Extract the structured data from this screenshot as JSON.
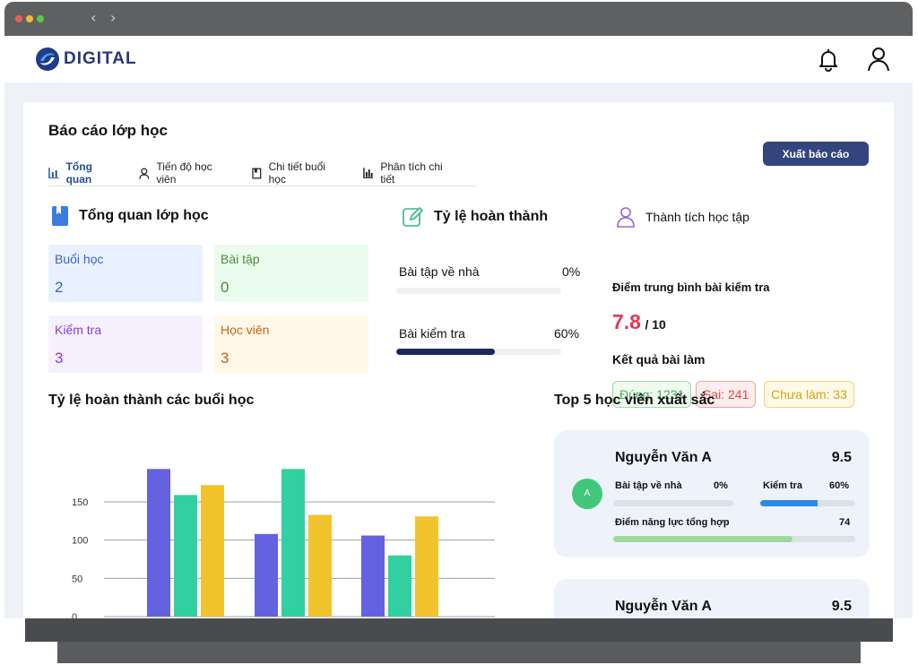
{
  "brand": {
    "name": "DIGITAL"
  },
  "page": {
    "title": "Báo cáo lớp học",
    "export_label": "Xuất báo cáo"
  },
  "tabs": [
    {
      "label": "Tổng quan",
      "icon": "bar-chart-icon",
      "active": true
    },
    {
      "label": "Tiến độ học viên",
      "icon": "user-icon",
      "active": false
    },
    {
      "label": "Chi tiết buổi học",
      "icon": "bookmark-icon",
      "active": false
    },
    {
      "label": "Phân tích chi tiết",
      "icon": "chart-icon",
      "active": false
    }
  ],
  "overview": {
    "title": "Tổng quan lớp học",
    "stats": [
      {
        "label": "Buổi học",
        "value": "2",
        "color": "#3b63c4",
        "bg": "#eaf1fe"
      },
      {
        "label": "Bài tập",
        "value": "0",
        "color": "#4b8b3f",
        "bg": "#ebfbee"
      },
      {
        "label": "Kiểm tra",
        "value": "3",
        "color": "#8a3ec8",
        "bg": "#f7f1fe"
      },
      {
        "label": "Học viên",
        "value": "3",
        "color": "#c0671a",
        "bg": "#fff8e8"
      }
    ]
  },
  "completion": {
    "title": "Tỷ lệ hoàn thành",
    "items": [
      {
        "label": "Bài tập về nhà",
        "percent_text": "0%",
        "percent": 0
      },
      {
        "label": "Bài kiểm tra",
        "percent_text": "60%",
        "percent": 60
      }
    ]
  },
  "achievement": {
    "title": "Thành tích học tập",
    "avg_label": "Điểm trung bình bài kiểm tra",
    "avg_score": "7.8",
    "avg_max": "/ 10",
    "result_label": "Kết quả bài làm",
    "chips": [
      {
        "text": "Đúng: 1231",
        "color": "#4ea85a",
        "bg": "#effbef"
      },
      {
        "text": "Sai: 241",
        "color": "#e0474c",
        "bg": "#fdeeee"
      },
      {
        "text": "Chưa làm: 33",
        "color": "#d9a012",
        "bg": "#fffae8"
      }
    ]
  },
  "sessions_chart_title": "Tỷ lệ hoàn thành các buổi học",
  "chart_data": {
    "type": "bar",
    "categories": [
      "",
      "",
      ""
    ],
    "series": [
      {
        "values": [
          193,
          108,
          106
        ],
        "color": "#6462e0"
      },
      {
        "values": [
          159,
          193,
          80
        ],
        "color": "#32d0a0"
      },
      {
        "values": [
          172,
          133,
          131
        ],
        "color": "#f1c32c"
      }
    ],
    "yticks": [
      "0",
      "50",
      "100",
      "150"
    ],
    "ylim": [
      0,
      200
    ],
    "grid": true
  },
  "top_students": {
    "title": "Top 5 học viên xuất sắc",
    "items": [
      {
        "avatar": "A",
        "name": "Nguyễn Văn A",
        "score": "9.5",
        "homework_label": "Bài tập về nhà",
        "homework_text": "0%",
        "homework": 0,
        "test_label": "Kiểm tra",
        "test_text": "60%",
        "test": 60,
        "ability_label": "Điểm năng lực tổng hợp",
        "ability_text": "74",
        "ability": 74
      },
      {
        "name": "Nguyễn Văn A",
        "score": "9.5"
      }
    ]
  }
}
